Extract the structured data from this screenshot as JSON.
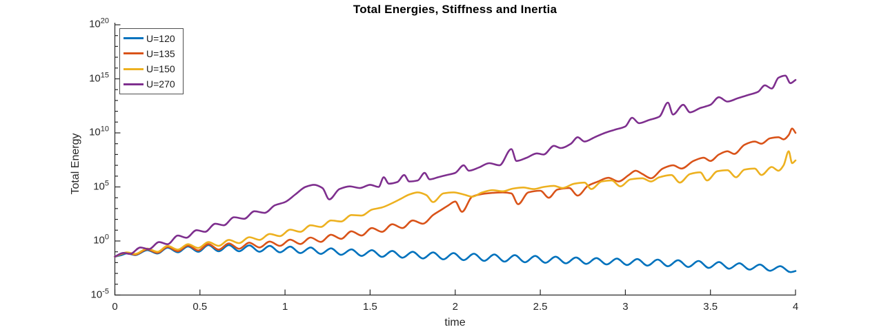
{
  "chart_data": {
    "type": "line",
    "title": "Total Energies, Stiffness and Inertia",
    "xlabel": "time",
    "ylabel": "Total Energy",
    "x_scale": "linear",
    "y_scale": "log10",
    "xlim": [
      0,
      4
    ],
    "ylim_exp": [
      -5,
      20
    ],
    "grid": false,
    "legend_position": "top-left",
    "x_ticks": [
      {
        "v": 0,
        "label": "0"
      },
      {
        "v": 0.5,
        "label": "0.5"
      },
      {
        "v": 1,
        "label": "1"
      },
      {
        "v": 1.5,
        "label": "1.5"
      },
      {
        "v": 2,
        "label": "2"
      },
      {
        "v": 2.5,
        "label": "2.5"
      },
      {
        "v": 3,
        "label": "3"
      },
      {
        "v": 3.5,
        "label": "3.5"
      },
      {
        "v": 4,
        "label": "4"
      }
    ],
    "y_tick_label_base": "10",
    "y_major_tick_exponents": [
      20,
      15,
      10,
      5,
      0,
      -5
    ],
    "series": [
      {
        "name": "U=120",
        "color": "#0072BD",
        "points_t_log10E": [
          [
            0,
            -1.45
          ],
          [
            0.04,
            -1.3
          ],
          [
            0.07,
            -1.15
          ],
          [
            0.12,
            -1.3
          ],
          [
            0.19,
            -0.85
          ],
          [
            0.25,
            -1.16
          ],
          [
            0.31,
            -0.62
          ],
          [
            0.37,
            -1.05
          ],
          [
            0.43,
            -0.5
          ],
          [
            0.49,
            -1.0
          ],
          [
            0.55,
            -0.38
          ],
          [
            0.61,
            -0.95
          ],
          [
            0.67,
            -0.38
          ],
          [
            0.73,
            -0.95
          ],
          [
            0.79,
            -0.4
          ],
          [
            0.85,
            -1.0
          ],
          [
            0.91,
            -0.45
          ],
          [
            0.97,
            -1.05
          ],
          [
            1.03,
            -0.52
          ],
          [
            1.09,
            -1.12
          ],
          [
            1.15,
            -0.6
          ],
          [
            1.21,
            -1.2
          ],
          [
            1.27,
            -0.68
          ],
          [
            1.33,
            -1.28
          ],
          [
            1.39,
            -0.78
          ],
          [
            1.45,
            -1.38
          ],
          [
            1.51,
            -0.85
          ],
          [
            1.57,
            -1.47
          ],
          [
            1.63,
            -0.92
          ],
          [
            1.69,
            -1.55
          ],
          [
            1.75,
            -1.0
          ],
          [
            1.81,
            -1.62
          ],
          [
            1.87,
            -1.06
          ],
          [
            1.93,
            -1.7
          ],
          [
            1.99,
            -1.12
          ],
          [
            2.05,
            -1.77
          ],
          [
            2.11,
            -1.18
          ],
          [
            2.17,
            -1.84
          ],
          [
            2.23,
            -1.25
          ],
          [
            2.29,
            -1.91
          ],
          [
            2.35,
            -1.31
          ],
          [
            2.41,
            -1.97
          ],
          [
            2.47,
            -1.38
          ],
          [
            2.53,
            -2.02
          ],
          [
            2.59,
            -1.45
          ],
          [
            2.65,
            -2.07
          ],
          [
            2.71,
            -1.52
          ],
          [
            2.77,
            -2.12
          ],
          [
            2.83,
            -1.58
          ],
          [
            2.89,
            -2.17
          ],
          [
            2.95,
            -1.63
          ],
          [
            3.01,
            -2.22
          ],
          [
            3.07,
            -1.67
          ],
          [
            3.13,
            -2.28
          ],
          [
            3.19,
            -1.72
          ],
          [
            3.25,
            -2.34
          ],
          [
            3.31,
            -1.78
          ],
          [
            3.37,
            -2.41
          ],
          [
            3.43,
            -1.85
          ],
          [
            3.49,
            -2.49
          ],
          [
            3.55,
            -1.95
          ],
          [
            3.61,
            -2.57
          ],
          [
            3.67,
            -2.06
          ],
          [
            3.73,
            -2.65
          ],
          [
            3.79,
            -2.18
          ],
          [
            3.85,
            -2.76
          ],
          [
            3.91,
            -2.33
          ],
          [
            3.97,
            -2.88
          ],
          [
            4,
            -2.78
          ]
        ]
      },
      {
        "name": "U=135",
        "color": "#D95319",
        "points_t_log10E": [
          [
            0,
            -1.45
          ],
          [
            0.07,
            -1.1
          ],
          [
            0.12,
            -1.27
          ],
          [
            0.19,
            -0.78
          ],
          [
            0.25,
            -1.1
          ],
          [
            0.31,
            -0.55
          ],
          [
            0.37,
            -0.95
          ],
          [
            0.43,
            -0.42
          ],
          [
            0.49,
            -0.88
          ],
          [
            0.55,
            -0.28
          ],
          [
            0.61,
            -0.8
          ],
          [
            0.67,
            -0.22
          ],
          [
            0.73,
            -0.72
          ],
          [
            0.79,
            -0.15
          ],
          [
            0.85,
            -0.6
          ],
          [
            0.91,
            -0.05
          ],
          [
            0.97,
            -0.45
          ],
          [
            1.03,
            0.12
          ],
          [
            1.09,
            -0.28
          ],
          [
            1.15,
            0.32
          ],
          [
            1.21,
            -0.08
          ],
          [
            1.27,
            0.58
          ],
          [
            1.33,
            0.2
          ],
          [
            1.39,
            0.9
          ],
          [
            1.45,
            0.5
          ],
          [
            1.51,
            1.2
          ],
          [
            1.57,
            0.85
          ],
          [
            1.63,
            1.55
          ],
          [
            1.69,
            1.2
          ],
          [
            1.75,
            1.9
          ],
          [
            1.81,
            1.6
          ],
          [
            1.87,
            2.4
          ],
          [
            1.92,
            2.9
          ],
          [
            1.96,
            3.3
          ],
          [
            2.0,
            3.65
          ],
          [
            2.04,
            2.7
          ],
          [
            2.1,
            4.1
          ],
          [
            2.16,
            4.35
          ],
          [
            2.22,
            4.45
          ],
          [
            2.28,
            4.5
          ],
          [
            2.33,
            4.4
          ],
          [
            2.37,
            3.4
          ],
          [
            2.43,
            4.5
          ],
          [
            2.5,
            4.65
          ],
          [
            2.55,
            4.0
          ],
          [
            2.6,
            4.75
          ],
          [
            2.67,
            4.9
          ],
          [
            2.72,
            4.2
          ],
          [
            2.78,
            5.1
          ],
          [
            2.84,
            5.5
          ],
          [
            2.9,
            5.85
          ],
          [
            2.96,
            5.5
          ],
          [
            3.02,
            6.1
          ],
          [
            3.06,
            6.5
          ],
          [
            3.1,
            6.2
          ],
          [
            3.15,
            5.8
          ],
          [
            3.22,
            6.7
          ],
          [
            3.28,
            7.0
          ],
          [
            3.33,
            6.7
          ],
          [
            3.4,
            7.4
          ],
          [
            3.46,
            7.7
          ],
          [
            3.5,
            7.4
          ],
          [
            3.55,
            8.0
          ],
          [
            3.6,
            8.3
          ],
          [
            3.64,
            8.05
          ],
          [
            3.7,
            8.9
          ],
          [
            3.76,
            9.2
          ],
          [
            3.8,
            9.0
          ],
          [
            3.85,
            9.5
          ],
          [
            3.9,
            9.6
          ],
          [
            3.93,
            9.4
          ],
          [
            3.96,
            9.8
          ],
          [
            3.98,
            10.4
          ],
          [
            4,
            10.0
          ]
        ]
      },
      {
        "name": "U=150",
        "color": "#EDB120",
        "points_t_log10E": [
          [
            0,
            -1.45
          ],
          [
            0.07,
            -1.05
          ],
          [
            0.12,
            -1.2
          ],
          [
            0.19,
            -0.7
          ],
          [
            0.25,
            -1.0
          ],
          [
            0.31,
            -0.45
          ],
          [
            0.37,
            -0.8
          ],
          [
            0.43,
            -0.3
          ],
          [
            0.49,
            -0.65
          ],
          [
            0.55,
            -0.1
          ],
          [
            0.61,
            -0.45
          ],
          [
            0.67,
            0.1
          ],
          [
            0.73,
            -0.2
          ],
          [
            0.79,
            0.35
          ],
          [
            0.85,
            0.1
          ],
          [
            0.91,
            0.65
          ],
          [
            0.97,
            0.45
          ],
          [
            1.03,
            1.05
          ],
          [
            1.09,
            0.85
          ],
          [
            1.15,
            1.45
          ],
          [
            1.21,
            1.3
          ],
          [
            1.27,
            1.9
          ],
          [
            1.33,
            1.8
          ],
          [
            1.39,
            2.4
          ],
          [
            1.45,
            2.35
          ],
          [
            1.51,
            2.9
          ],
          [
            1.57,
            3.1
          ],
          [
            1.63,
            3.5
          ],
          [
            1.68,
            3.9
          ],
          [
            1.73,
            4.3
          ],
          [
            1.78,
            4.5
          ],
          [
            1.83,
            4.25
          ],
          [
            1.87,
            3.6
          ],
          [
            1.93,
            4.4
          ],
          [
            1.99,
            4.5
          ],
          [
            2.05,
            4.3
          ],
          [
            2.1,
            4.1
          ],
          [
            2.16,
            4.5
          ],
          [
            2.22,
            4.7
          ],
          [
            2.28,
            4.6
          ],
          [
            2.34,
            4.85
          ],
          [
            2.4,
            4.95
          ],
          [
            2.46,
            4.8
          ],
          [
            2.52,
            5.0
          ],
          [
            2.58,
            5.1
          ],
          [
            2.63,
            4.9
          ],
          [
            2.7,
            5.3
          ],
          [
            2.76,
            5.4
          ],
          [
            2.8,
            4.8
          ],
          [
            2.86,
            5.5
          ],
          [
            2.92,
            5.6
          ],
          [
            2.97,
            5.05
          ],
          [
            3.03,
            5.7
          ],
          [
            3.1,
            5.8
          ],
          [
            3.15,
            5.5
          ],
          [
            3.2,
            5.9
          ],
          [
            3.27,
            6.1
          ],
          [
            3.32,
            5.4
          ],
          [
            3.38,
            6.2
          ],
          [
            3.44,
            6.35
          ],
          [
            3.48,
            5.6
          ],
          [
            3.54,
            6.45
          ],
          [
            3.6,
            6.55
          ],
          [
            3.65,
            5.9
          ],
          [
            3.7,
            6.6
          ],
          [
            3.76,
            6.7
          ],
          [
            3.8,
            6.1
          ],
          [
            3.86,
            6.85
          ],
          [
            3.9,
            6.5
          ],
          [
            3.93,
            7.0
          ],
          [
            3.96,
            8.3
          ],
          [
            3.98,
            7.2
          ],
          [
            4,
            7.45
          ]
        ]
      },
      {
        "name": "U=270",
        "color": "#7E2F8E",
        "points_t_log10E": [
          [
            0,
            -1.45
          ],
          [
            0.05,
            -1.1
          ],
          [
            0.09,
            -1.2
          ],
          [
            0.15,
            -0.6
          ],
          [
            0.2,
            -0.75
          ],
          [
            0.26,
            -0.1
          ],
          [
            0.31,
            -0.3
          ],
          [
            0.37,
            0.5
          ],
          [
            0.42,
            0.3
          ],
          [
            0.48,
            1.0
          ],
          [
            0.53,
            0.85
          ],
          [
            0.59,
            1.6
          ],
          [
            0.64,
            1.45
          ],
          [
            0.7,
            2.2
          ],
          [
            0.76,
            2.05
          ],
          [
            0.82,
            2.75
          ],
          [
            0.88,
            2.6
          ],
          [
            0.94,
            3.3
          ],
          [
            1.0,
            3.6
          ],
          [
            1.06,
            4.3
          ],
          [
            1.12,
            5.0
          ],
          [
            1.17,
            5.2
          ],
          [
            1.22,
            4.9
          ],
          [
            1.26,
            3.85
          ],
          [
            1.32,
            4.8
          ],
          [
            1.38,
            5.05
          ],
          [
            1.44,
            4.9
          ],
          [
            1.5,
            5.2
          ],
          [
            1.55,
            5.0
          ],
          [
            1.58,
            5.9
          ],
          [
            1.61,
            5.3
          ],
          [
            1.66,
            5.45
          ],
          [
            1.7,
            6.1
          ],
          [
            1.73,
            5.5
          ],
          [
            1.78,
            5.6
          ],
          [
            1.82,
            6.3
          ],
          [
            1.85,
            5.7
          ],
          [
            1.9,
            5.9
          ],
          [
            1.95,
            6.1
          ],
          [
            2.0,
            6.3
          ],
          [
            2.05,
            7.0
          ],
          [
            2.08,
            6.5
          ],
          [
            2.14,
            6.8
          ],
          [
            2.2,
            7.2
          ],
          [
            2.26,
            7.0
          ],
          [
            2.33,
            8.5
          ],
          [
            2.36,
            7.4
          ],
          [
            2.42,
            7.7
          ],
          [
            2.48,
            8.1
          ],
          [
            2.52,
            8.0
          ],
          [
            2.58,
            8.8
          ],
          [
            2.62,
            8.6
          ],
          [
            2.68,
            9.0
          ],
          [
            2.72,
            9.6
          ],
          [
            2.76,
            9.2
          ],
          [
            2.82,
            9.6
          ],
          [
            2.88,
            10.0
          ],
          [
            2.94,
            10.3
          ],
          [
            3.0,
            10.6
          ],
          [
            3.04,
            11.4
          ],
          [
            3.08,
            10.9
          ],
          [
            3.14,
            11.2
          ],
          [
            3.2,
            11.5
          ],
          [
            3.25,
            12.8
          ],
          [
            3.28,
            11.7
          ],
          [
            3.34,
            12.6
          ],
          [
            3.38,
            11.9
          ],
          [
            3.44,
            12.3
          ],
          [
            3.5,
            12.6
          ],
          [
            3.55,
            13.3
          ],
          [
            3.6,
            12.9
          ],
          [
            3.66,
            13.2
          ],
          [
            3.72,
            13.5
          ],
          [
            3.78,
            13.8
          ],
          [
            3.82,
            14.4
          ],
          [
            3.86,
            14.1
          ],
          [
            3.9,
            15.1
          ],
          [
            3.94,
            15.3
          ],
          [
            3.97,
            14.6
          ],
          [
            4,
            14.9
          ]
        ]
      }
    ]
  }
}
